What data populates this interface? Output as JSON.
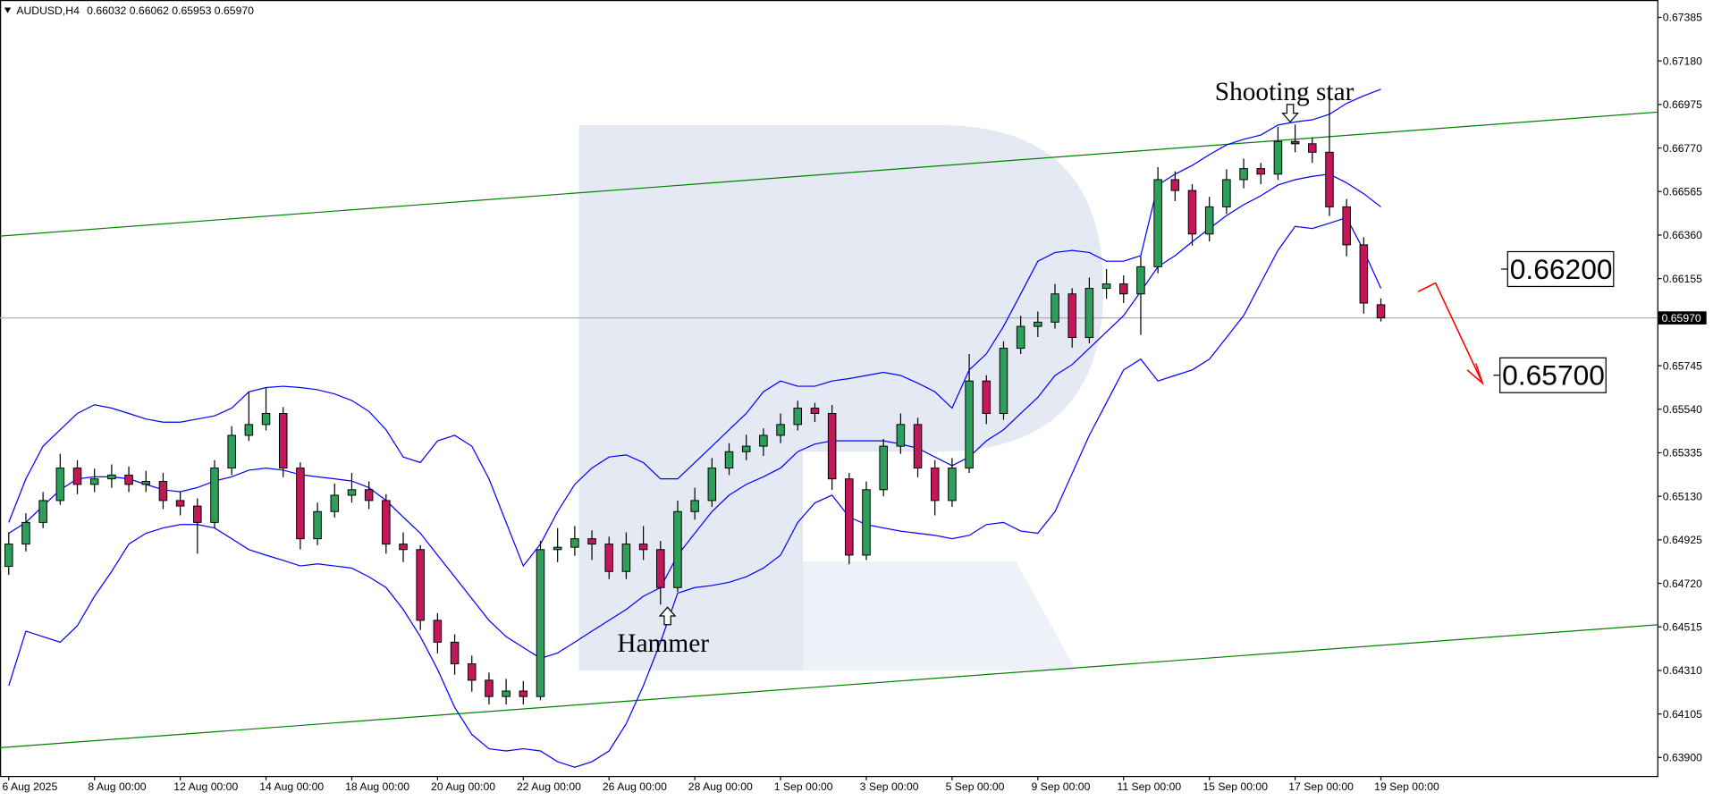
{
  "chart_data": {
    "type": "candlestick",
    "symbol": "AUDUSD,H4",
    "header_ohlc": [
      "0.66032",
      "0.66062",
      "0.65953",
      "0.65970"
    ],
    "up_color": "#2e9e5b",
    "down_color": "#c2185b",
    "categories": [
      "6 Aug 2025",
      null,
      null,
      null,
      null,
      "8 Aug 00:00",
      null,
      null,
      null,
      null,
      "12 Aug 00:00",
      null,
      null,
      null,
      null,
      "14 Aug 00:00",
      null,
      null,
      null,
      null,
      "18 Aug 00:00",
      null,
      null,
      null,
      null,
      "20 Aug 00:00",
      null,
      null,
      null,
      null,
      "22 Aug 00:00",
      null,
      null,
      null,
      null,
      "26 Aug 00:00",
      null,
      null,
      null,
      null,
      "28 Aug 00:00",
      null,
      null,
      null,
      null,
      "1 Sep 00:00",
      null,
      null,
      null,
      null,
      "3 Sep 00:00",
      null,
      null,
      null,
      null,
      "5 Sep 00:00",
      null,
      null,
      null,
      null,
      "9 Sep 00:00",
      null,
      null,
      null,
      null,
      "11 Sep 00:00",
      null,
      null,
      null,
      null,
      "15 Sep 00:00",
      null,
      null,
      null,
      null,
      "17 Sep 00:00",
      null,
      null,
      null,
      null,
      "19 Sep 00:00"
    ],
    "open": [
      0.648,
      0.64905,
      0.65007,
      0.6511,
      0.65263,
      0.65186,
      0.65212,
      0.6523,
      0.65186,
      0.652,
      0.6511,
      0.65084,
      0.65007,
      0.65263,
      0.65417,
      0.65468,
      0.6552,
      0.65263,
      0.6493,
      0.65058,
      0.65135,
      0.65161,
      0.6511,
      0.64905,
      0.64879,
      0.64546,
      0.64443,
      0.64341,
      0.64264,
      0.64187,
      0.64213,
      0.64187,
      0.64879,
      0.6489,
      0.6493,
      0.64905,
      0.64776,
      0.64905,
      0.64879,
      0.647,
      0.65058,
      0.6511,
      0.65263,
      0.6534,
      0.65366,
      0.65417,
      0.65468,
      0.65545,
      0.6552,
      0.65212,
      0.64853,
      0.65161,
      0.65366,
      0.65468,
      0.65263,
      0.6511,
      0.65263,
      0.65673,
      0.6552,
      0.65827,
      0.6593,
      0.6595,
      0.66083,
      0.65878,
      0.66109,
      0.6613,
      0.66083,
      0.66211,
      0.66621,
      0.6657,
      0.66365,
      0.66493,
      0.66621,
      0.66673,
      0.66647,
      0.66801,
      0.6679,
      0.6675,
      0.66493,
      0.66314,
      0.66032
    ],
    "high": [
      0.6496,
      0.6505,
      0.6515,
      0.6533,
      0.653,
      0.6526,
      0.6528,
      0.6527,
      0.6525,
      0.6524,
      0.6515,
      0.6512,
      0.653,
      0.6546,
      0.6562,
      0.6564,
      0.6555,
      0.6529,
      0.651,
      0.6519,
      0.6524,
      0.652,
      0.6514,
      0.6496,
      0.649,
      0.6458,
      0.6448,
      0.6438,
      0.643,
      0.6427,
      0.6426,
      0.6492,
      0.6498,
      0.6499,
      0.6497,
      0.6494,
      0.6496,
      0.6499,
      0.6492,
      0.6511,
      0.6517,
      0.6531,
      0.6538,
      0.6542,
      0.6545,
      0.6552,
      0.6558,
      0.6557,
      0.6556,
      0.6524,
      0.652,
      0.654,
      0.6552,
      0.655,
      0.653,
      0.6531,
      0.658,
      0.657,
      0.6586,
      0.6598,
      0.66,
      0.6613,
      0.6611,
      0.6616,
      0.662,
      0.6617,
      0.6626,
      0.6668,
      0.6666,
      0.666,
      0.6654,
      0.6667,
      0.6672,
      0.667,
      0.6687,
      0.6688,
      0.6682,
      0.6704,
      0.6653,
      0.6635,
      0.66062
    ],
    "low": [
      0.6476,
      0.6487,
      0.6498,
      0.6509,
      0.6514,
      0.6515,
      0.6517,
      0.6515,
      0.6515,
      0.6507,
      0.6504,
      0.6486,
      0.6498,
      0.6523,
      0.6539,
      0.6544,
      0.6522,
      0.6488,
      0.649,
      0.6503,
      0.651,
      0.6507,
      0.6486,
      0.6482,
      0.645,
      0.6439,
      0.6429,
      0.6421,
      0.6415,
      0.6415,
      0.6415,
      0.6417,
      0.6482,
      0.6485,
      0.6483,
      0.6474,
      0.6474,
      0.6483,
      0.6462,
      0.6468,
      0.6502,
      0.6508,
      0.6523,
      0.653,
      0.6532,
      0.6538,
      0.6544,
      0.6548,
      0.6516,
      0.6481,
      0.6483,
      0.6513,
      0.6533,
      0.6522,
      0.6504,
      0.6508,
      0.6524,
      0.6547,
      0.6549,
      0.658,
      0.6588,
      0.6592,
      0.6583,
      0.6585,
      0.6606,
      0.6604,
      0.6589,
      0.6618,
      0.6652,
      0.6631,
      0.6633,
      0.6646,
      0.6658,
      0.666,
      0.6662,
      0.6675,
      0.667,
      0.6645,
      0.6626,
      0.6599,
      0.65953
    ],
    "close": [
      0.64905,
      0.65007,
      0.6511,
      0.65263,
      0.65186,
      0.65212,
      0.6523,
      0.65186,
      0.652,
      0.6511,
      0.65084,
      0.65007,
      0.65263,
      0.65417,
      0.65468,
      0.6552,
      0.65263,
      0.6493,
      0.65058,
      0.65135,
      0.65161,
      0.6511,
      0.64905,
      0.64879,
      0.64546,
      0.64443,
      0.64341,
      0.64264,
      0.64187,
      0.64213,
      0.64187,
      0.64879,
      0.6489,
      0.6493,
      0.64905,
      0.64776,
      0.64905,
      0.64879,
      0.647,
      0.65058,
      0.6511,
      0.65263,
      0.6534,
      0.65366,
      0.65417,
      0.65468,
      0.65545,
      0.6552,
      0.65212,
      0.64853,
      0.65161,
      0.65366,
      0.65468,
      0.65263,
      0.6511,
      0.65263,
      0.65673,
      0.6552,
      0.65827,
      0.6593,
      0.6595,
      0.66083,
      0.65878,
      0.66109,
      0.6613,
      0.66083,
      0.66211,
      0.66621,
      0.6657,
      0.66365,
      0.66493,
      0.66621,
      0.66673,
      0.66647,
      0.66801,
      0.6679,
      0.6675,
      0.66493,
      0.66314,
      0.6604,
      0.6597
    ],
    "bands": {
      "color": "#0000ff",
      "upper": [
        0.65007,
        0.65212,
        0.65366,
        0.65443,
        0.6552,
        0.65561,
        0.65545,
        0.6552,
        0.65494,
        0.65479,
        0.65479,
        0.65494,
        0.65509,
        0.65545,
        0.65622,
        0.65642,
        0.65648,
        0.65642,
        0.65632,
        0.65612,
        0.65581,
        0.6553,
        0.65443,
        0.65315,
        0.65289,
        0.65391,
        0.65417,
        0.65366,
        0.65212,
        0.65007,
        0.64802,
        0.64905,
        0.65058,
        0.65186,
        0.65263,
        0.65315,
        0.65325,
        0.65289,
        0.65212,
        0.65212,
        0.65289,
        0.65366,
        0.65443,
        0.6552,
        0.65622,
        0.65673,
        0.65648,
        0.65648,
        0.65673,
        0.65684,
        0.65699,
        0.65714,
        0.65699,
        0.65663,
        0.65622,
        0.65545,
        0.65725,
        0.65801,
        0.6593,
        0.66083,
        0.66237,
        0.66278,
        0.66288,
        0.66278,
        0.66237,
        0.66237,
        0.66263,
        0.66596,
        0.66647,
        0.66688,
        0.66739,
        0.66785,
        0.66811,
        0.66831,
        0.66878,
        0.66893,
        0.66903,
        0.66929,
        0.6698,
        0.67016,
        0.67047
      ],
      "middle": [
        0.64956,
        0.65007,
        0.65084,
        0.65161,
        0.65212,
        0.65222,
        0.65222,
        0.65212,
        0.65186,
        0.65161,
        0.65151,
        0.65171,
        0.65202,
        0.65222,
        0.65253,
        0.65263,
        0.65253,
        0.65232,
        0.65222,
        0.65212,
        0.65202,
        0.65171,
        0.6511,
        0.65032,
        0.64956,
        0.64853,
        0.64751,
        0.64648,
        0.64546,
        0.64469,
        0.64418,
        0.64367,
        0.64392,
        0.64443,
        0.64495,
        0.64546,
        0.64597,
        0.64659,
        0.647,
        0.64853,
        0.64956,
        0.65058,
        0.65135,
        0.65186,
        0.65222,
        0.65263,
        0.6534,
        0.65376,
        0.65391,
        0.65391,
        0.65391,
        0.65391,
        0.65376,
        0.65356,
        0.65315,
        0.65274,
        0.65315,
        0.65391,
        0.65443,
        0.6552,
        0.65596,
        0.65699,
        0.6575,
        0.65827,
        0.65904,
        0.65981,
        0.66094,
        0.66211,
        0.66263,
        0.66329,
        0.66391,
        0.66452,
        0.66503,
        0.66545,
        0.66596,
        0.66621,
        0.66637,
        0.66647,
        0.66606,
        0.66555,
        0.66493
      ],
      "lower": [
        0.64238,
        0.64495,
        0.64469,
        0.64443,
        0.6452,
        0.64659,
        0.64776,
        0.64905,
        0.64956,
        0.64981,
        0.64997,
        0.64997,
        0.64981,
        0.6493,
        0.64879,
        0.64853,
        0.64828,
        0.64802,
        0.64812,
        0.64802,
        0.64792,
        0.64751,
        0.647,
        0.64597,
        0.64469,
        0.64315,
        0.64136,
        0.64008,
        0.63941,
        0.63931,
        0.63941,
        0.63931,
        0.6388,
        0.63854,
        0.6388,
        0.63931,
        0.64059,
        0.64238,
        0.64443,
        0.64674,
        0.647,
        0.6471,
        0.64725,
        0.64751,
        0.64792,
        0.64853,
        0.65007,
        0.65099,
        0.65135,
        0.65032,
        0.64997,
        0.64981,
        0.64966,
        0.64956,
        0.64946,
        0.6493,
        0.64946,
        0.64997,
        0.65007,
        0.64966,
        0.64956,
        0.65058,
        0.65237,
        0.65417,
        0.65571,
        0.65725,
        0.65776,
        0.65673,
        0.65699,
        0.65725,
        0.65776,
        0.65878,
        0.65981,
        0.66135,
        0.66288,
        0.66401,
        0.66391,
        0.66416,
        0.66442,
        0.66288,
        0.66109
      ]
    },
    "channel": {
      "color": "#008000",
      "upper": [
        0.66355,
        0.66939
      ],
      "lower": [
        0.63946,
        0.64525
      ]
    },
    "ylim": [
      0.63813,
      0.67467
    ],
    "yticks": [
      0.67385,
      {
        "value": 0.6718,
        "label": "0.67180"
      },
      0.66975,
      {
        "value": 0.6677,
        "label": "0.66770"
      },
      0.66565,
      {
        "value": 0.6636,
        "label": "0.66360"
      },
      0.66155,
      0.65745,
      {
        "value": 0.6554,
        "label": "0.65540"
      },
      0.65335,
      {
        "value": 0.6513,
        "label": "0.65130"
      },
      0.64925,
      {
        "value": 0.6472,
        "label": "0.64720"
      },
      0.64515,
      {
        "value": 0.6431,
        "label": "0.64310"
      },
      0.64105,
      {
        "value": 0.639,
        "label": "0.63900"
      }
    ],
    "last_price": {
      "value": 0.6597,
      "label": "0.65970"
    },
    "targets": [
      {
        "value": 0.662,
        "label": "0.66200"
      },
      {
        "value": 0.657,
        "label": "0.65700"
      }
    ],
    "annotations": [
      "Shooting star",
      "Hammer"
    ]
  }
}
